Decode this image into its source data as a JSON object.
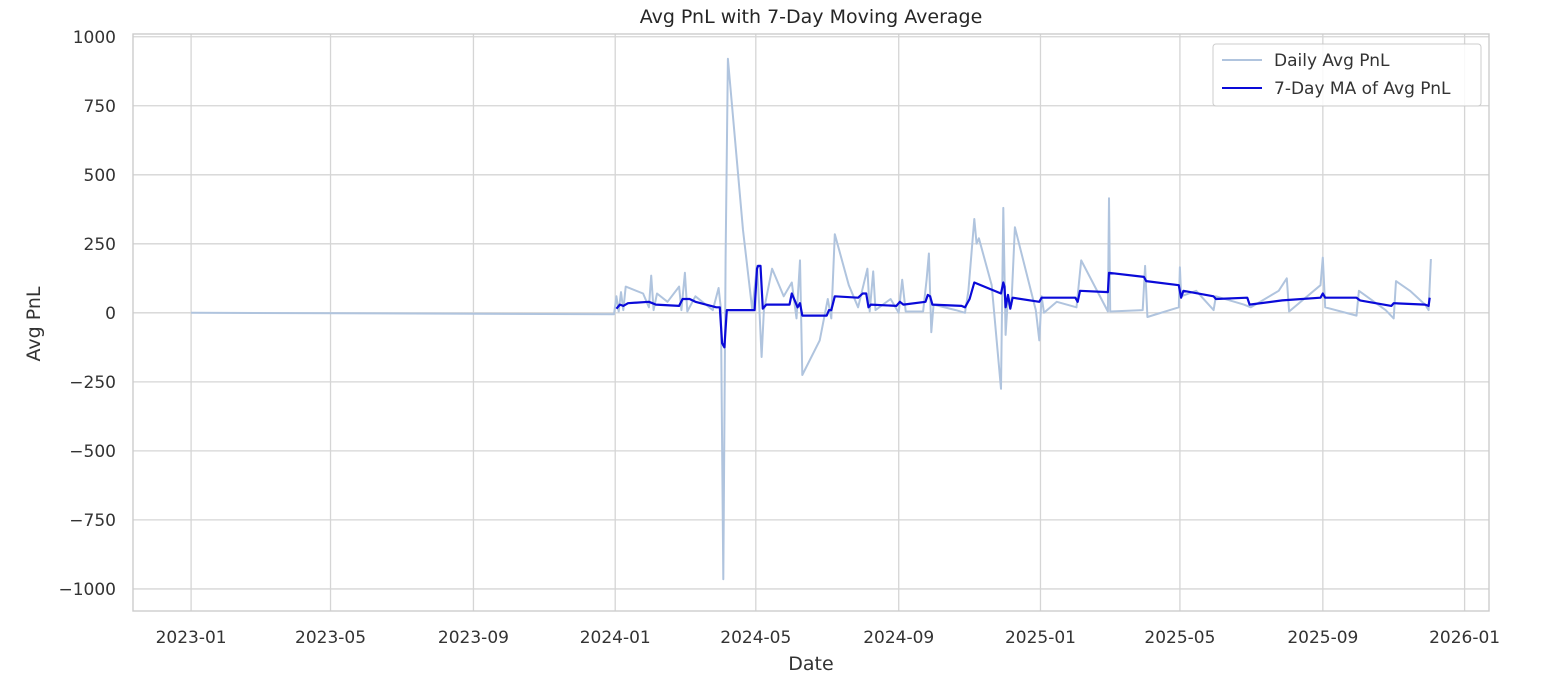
{
  "chart_data": {
    "type": "line",
    "title": "Avg PnL with 7-Day Moving Average",
    "xlabel": "Date",
    "ylabel": "Avg PnL",
    "xlim": [
      "2022-11-12",
      "2026-01-22"
    ],
    "ylim": [
      -1080,
      1010
    ],
    "x_ticks": [
      "2023-01",
      "2023-05",
      "2023-09",
      "2024-01",
      "2024-05",
      "2024-09",
      "2025-01",
      "2025-05",
      "2025-09",
      "2026-01"
    ],
    "y_ticks": [
      -1000,
      -750,
      -500,
      -250,
      0,
      250,
      500,
      750,
      1000
    ],
    "y_tick_labels": [
      "−1000",
      "−750",
      "−500",
      "−250",
      "0",
      "250",
      "500",
      "750",
      "1000"
    ],
    "grid": true,
    "legend_position": "top-right",
    "series": [
      {
        "name": "Daily Avg PnL",
        "color": "#b0c4de",
        "points": [
          [
            "2023-01-01",
            0
          ],
          [
            "2023-12-31",
            -5
          ],
          [
            "2024-01-02",
            60
          ],
          [
            "2024-01-04",
            5
          ],
          [
            "2024-01-06",
            75
          ],
          [
            "2024-01-08",
            10
          ],
          [
            "2024-01-10",
            95
          ],
          [
            "2024-01-25",
            70
          ],
          [
            "2024-01-30",
            20
          ],
          [
            "2024-02-01",
            135
          ],
          [
            "2024-02-03",
            10
          ],
          [
            "2024-02-06",
            70
          ],
          [
            "2024-02-15",
            40
          ],
          [
            "2024-02-25",
            95
          ],
          [
            "2024-02-27",
            10
          ],
          [
            "2024-03-01",
            145
          ],
          [
            "2024-03-03",
            5
          ],
          [
            "2024-03-10",
            60
          ],
          [
            "2024-03-25",
            10
          ],
          [
            "2024-03-30",
            90
          ],
          [
            "2024-04-01",
            15
          ],
          [
            "2024-04-03",
            -965
          ],
          [
            "2024-04-05",
            200
          ],
          [
            "2024-04-07",
            920
          ],
          [
            "2024-04-20",
            300
          ],
          [
            "2024-04-28",
            10
          ],
          [
            "2024-05-02",
            170
          ],
          [
            "2024-05-04",
            20
          ],
          [
            "2024-05-06",
            -160
          ],
          [
            "2024-05-08",
            10
          ],
          [
            "2024-05-15",
            160
          ],
          [
            "2024-05-25",
            60
          ],
          [
            "2024-06-01",
            110
          ],
          [
            "2024-06-05",
            -20
          ],
          [
            "2024-06-08",
            190
          ],
          [
            "2024-06-10",
            -225
          ],
          [
            "2024-06-25",
            -100
          ],
          [
            "2024-07-02",
            50
          ],
          [
            "2024-07-05",
            -20
          ],
          [
            "2024-07-08",
            285
          ],
          [
            "2024-07-20",
            100
          ],
          [
            "2024-07-28",
            20
          ],
          [
            "2024-08-05",
            160
          ],
          [
            "2024-08-07",
            5
          ],
          [
            "2024-08-10",
            150
          ],
          [
            "2024-08-12",
            10
          ],
          [
            "2024-08-25",
            50
          ],
          [
            "2024-09-01",
            0
          ],
          [
            "2024-09-04",
            120
          ],
          [
            "2024-09-07",
            5
          ],
          [
            "2024-09-22",
            5
          ],
          [
            "2024-09-25",
            120
          ],
          [
            "2024-09-27",
            215
          ],
          [
            "2024-09-29",
            -70
          ],
          [
            "2024-10-01",
            30
          ],
          [
            "2024-10-20",
            10
          ],
          [
            "2024-10-28",
            0
          ],
          [
            "2024-10-31",
            80
          ],
          [
            "2024-11-05",
            340
          ],
          [
            "2024-11-07",
            250
          ],
          [
            "2024-11-09",
            270
          ],
          [
            "2024-11-20",
            100
          ],
          [
            "2024-11-28",
            -275
          ],
          [
            "2024-11-30",
            380
          ],
          [
            "2024-12-02",
            -80
          ],
          [
            "2024-12-04",
            60
          ],
          [
            "2024-12-07",
            30
          ],
          [
            "2024-12-10",
            310
          ],
          [
            "2024-12-28",
            10
          ],
          [
            "2024-12-31",
            -100
          ],
          [
            "2025-01-02",
            60
          ],
          [
            "2025-01-04",
            0
          ],
          [
            "2025-01-15",
            40
          ],
          [
            "2025-02-01",
            20
          ],
          [
            "2025-02-05",
            190
          ],
          [
            "2025-02-28",
            5
          ],
          [
            "2025-03-01",
            415
          ],
          [
            "2025-03-02",
            5
          ],
          [
            "2025-03-30",
            10
          ],
          [
            "2025-04-01",
            170
          ],
          [
            "2025-04-03",
            -15
          ],
          [
            "2025-04-30",
            20
          ],
          [
            "2025-05-01",
            165
          ],
          [
            "2025-05-02",
            60
          ],
          [
            "2025-05-15",
            80
          ],
          [
            "2025-05-30",
            10
          ],
          [
            "2025-06-01",
            60
          ],
          [
            "2025-06-25",
            30
          ],
          [
            "2025-07-01",
            20
          ],
          [
            "2025-07-05",
            30
          ],
          [
            "2025-07-25",
            80
          ],
          [
            "2025-08-01",
            125
          ],
          [
            "2025-08-03",
            5
          ],
          [
            "2025-08-30",
            100
          ],
          [
            "2025-09-01",
            200
          ],
          [
            "2025-09-03",
            20
          ],
          [
            "2025-09-30",
            -10
          ],
          [
            "2025-10-02",
            80
          ],
          [
            "2025-10-25",
            10
          ],
          [
            "2025-11-01",
            -20
          ],
          [
            "2025-11-03",
            115
          ],
          [
            "2025-11-15",
            80
          ],
          [
            "2025-11-28",
            30
          ],
          [
            "2025-12-01",
            10
          ],
          [
            "2025-12-03",
            195
          ]
        ]
      },
      {
        "name": "7-Day MA of Avg PnL",
        "color": "#0a0ad8",
        "points": [
          [
            "2024-01-02",
            15
          ],
          [
            "2024-01-05",
            30
          ],
          [
            "2024-01-08",
            25
          ],
          [
            "2024-01-12",
            35
          ],
          [
            "2024-01-30",
            40
          ],
          [
            "2024-02-02",
            35
          ],
          [
            "2024-02-05",
            30
          ],
          [
            "2024-02-25",
            25
          ],
          [
            "2024-02-28",
            50
          ],
          [
            "2024-03-05",
            50
          ],
          [
            "2024-03-10",
            40
          ],
          [
            "2024-03-28",
            20
          ],
          [
            "2024-03-31",
            20
          ],
          [
            "2024-04-02",
            -110
          ],
          [
            "2024-04-04",
            -125
          ],
          [
            "2024-04-06",
            10
          ],
          [
            "2024-04-30",
            10
          ],
          [
            "2024-05-02",
            160
          ],
          [
            "2024-05-03",
            170
          ],
          [
            "2024-05-05",
            170
          ],
          [
            "2024-05-07",
            15
          ],
          [
            "2024-05-10",
            30
          ],
          [
            "2024-05-30",
            30
          ],
          [
            "2024-06-01",
            70
          ],
          [
            "2024-06-04",
            40
          ],
          [
            "2024-06-06",
            20
          ],
          [
            "2024-06-08",
            35
          ],
          [
            "2024-06-10",
            -10
          ],
          [
            "2024-07-01",
            -10
          ],
          [
            "2024-07-03",
            10
          ],
          [
            "2024-07-05",
            10
          ],
          [
            "2024-07-08",
            60
          ],
          [
            "2024-07-28",
            55
          ],
          [
            "2024-08-01",
            70
          ],
          [
            "2024-08-04",
            70
          ],
          [
            "2024-08-06",
            20
          ],
          [
            "2024-08-08",
            30
          ],
          [
            "2024-08-30",
            25
          ],
          [
            "2024-09-02",
            40
          ],
          [
            "2024-09-05",
            30
          ],
          [
            "2024-09-24",
            40
          ],
          [
            "2024-09-26",
            65
          ],
          [
            "2024-09-28",
            60
          ],
          [
            "2024-09-30",
            30
          ],
          [
            "2024-10-25",
            25
          ],
          [
            "2024-10-28",
            20
          ],
          [
            "2024-11-01",
            50
          ],
          [
            "2024-11-05",
            110
          ],
          [
            "2024-11-28",
            70
          ],
          [
            "2024-11-30",
            110
          ],
          [
            "2024-12-01",
            95
          ],
          [
            "2024-12-02",
            20
          ],
          [
            "2024-12-04",
            65
          ],
          [
            "2024-12-06",
            15
          ],
          [
            "2024-12-08",
            55
          ],
          [
            "2024-12-31",
            40
          ],
          [
            "2025-01-02",
            55
          ],
          [
            "2025-01-31",
            55
          ],
          [
            "2025-02-02",
            40
          ],
          [
            "2025-02-04",
            80
          ],
          [
            "2025-02-28",
            75
          ],
          [
            "2025-03-01",
            145
          ],
          [
            "2025-03-31",
            130
          ],
          [
            "2025-04-02",
            115
          ],
          [
            "2025-04-30",
            100
          ],
          [
            "2025-05-02",
            55
          ],
          [
            "2025-05-04",
            80
          ],
          [
            "2025-05-30",
            60
          ],
          [
            "2025-06-01",
            50
          ],
          [
            "2025-06-28",
            55
          ],
          [
            "2025-06-30",
            30
          ],
          [
            "2025-07-28",
            45
          ],
          [
            "2025-08-30",
            55
          ],
          [
            "2025-09-01",
            70
          ],
          [
            "2025-09-03",
            55
          ],
          [
            "2025-09-30",
            55
          ],
          [
            "2025-10-03",
            45
          ],
          [
            "2025-10-30",
            25
          ],
          [
            "2025-11-01",
            35
          ],
          [
            "2025-11-28",
            30
          ],
          [
            "2025-12-01",
            25
          ],
          [
            "2025-12-02",
            55
          ]
        ]
      }
    ]
  }
}
